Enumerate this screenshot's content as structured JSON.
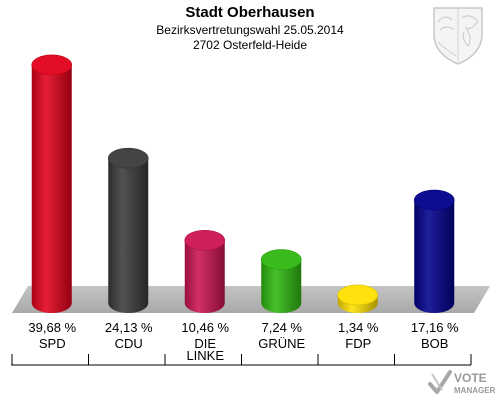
{
  "header": {
    "title": "Stadt Oberhausen",
    "subtitle": "Bezirksvertretungswahl 25.05.2014",
    "district": "2702 Osterfeld-Heide"
  },
  "brand": {
    "line1": "VOTE",
    "line2": "MANAGER"
  },
  "chart_data": {
    "type": "bar",
    "title": "Stadt Oberhausen",
    "subtitle": "Bezirksvertretungswahl 25.05.2014",
    "categories": [
      "SPD",
      "CDU",
      "DIE LINKE",
      "GRÜNE",
      "FDP",
      "BOB"
    ],
    "category_lines": [
      [
        "SPD"
      ],
      [
        "CDU"
      ],
      [
        "DIE",
        "LINKE"
      ],
      [
        "GRÜNE"
      ],
      [
        "FDP"
      ],
      [
        "BOB"
      ]
    ],
    "values": [
      39.68,
      24.13,
      10.46,
      7.24,
      1.34,
      17.16
    ],
    "value_labels": [
      "39,68 %",
      "24,13 %",
      "10,46 %",
      "7,24 %",
      "1,34 %",
      "17,16 %"
    ],
    "colors": [
      "#e2001a",
      "#3a3a3a",
      "#cc1451",
      "#2fb80f",
      "#ffe000",
      "#00008c"
    ],
    "ylim": [
      0,
      40
    ],
    "grid": false,
    "legend": "none"
  }
}
